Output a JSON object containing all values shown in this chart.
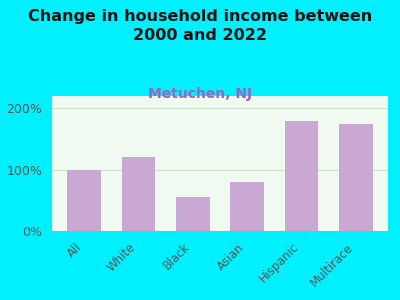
{
  "title": "Change in household income between\n2000 and 2022",
  "subtitle": "Metuchen, NJ",
  "categories": [
    "All",
    "White",
    "Black",
    "Asian",
    "Hispanic",
    "Multirace"
  ],
  "values": [
    100,
    120,
    55,
    80,
    180,
    175
  ],
  "bar_color": "#c9a8d4",
  "background_outer": "#00f0ff",
  "title_fontsize": 11.5,
  "subtitle_fontsize": 10,
  "subtitle_color": "#9966bb",
  "title_color": "#111111",
  "tick_label_color": "#555555",
  "ylim": [
    0,
    220
  ],
  "yticks": [
    0,
    100,
    200
  ],
  "ytick_labels": [
    "0%",
    "100%",
    "200%"
  ],
  "grid_color": "#bbddbb",
  "grid_alpha": 0.7,
  "plot_bg": "#f0faf0"
}
